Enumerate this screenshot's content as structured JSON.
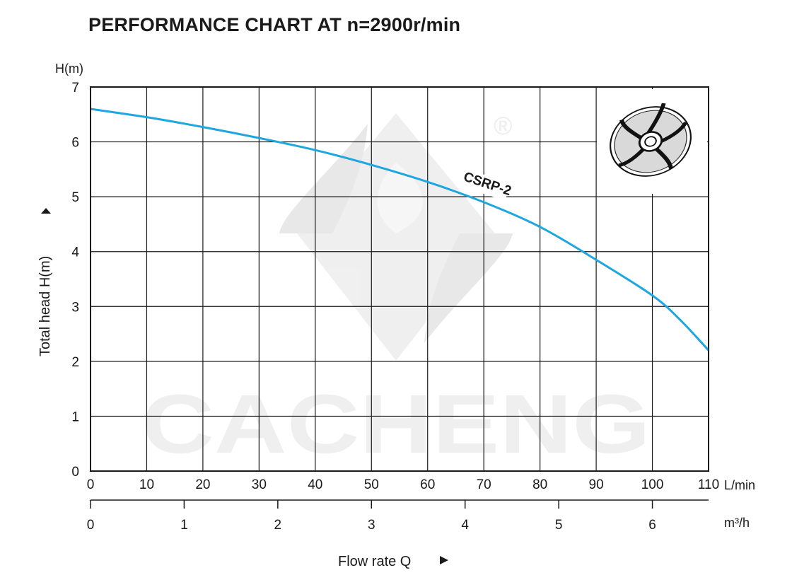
{
  "chart_data": {
    "type": "line",
    "title": "PERFORMANCE CHART AT n=2900r/min",
    "ylabel": "Total  head H(m)",
    "yunit": "H(m)",
    "xlabel": "Flow rate  Q",
    "x_unit_primary": "L/min",
    "x_unit_secondary": "m³/h",
    "ylim": [
      0,
      7
    ],
    "xlim": [
      0,
      110
    ],
    "yticks": [
      0,
      1,
      2,
      3,
      4,
      5,
      6,
      7
    ],
    "xticks_primary": [
      0,
      10,
      20,
      30,
      40,
      50,
      60,
      70,
      80,
      90,
      100,
      110
    ],
    "xticks_secondary": [
      0,
      1,
      2,
      3,
      4,
      5,
      6
    ],
    "xlim_secondary": [
      0,
      6.6
    ],
    "grid": true,
    "series": [
      {
        "name": "CSRP-2",
        "color": "#1ea6e0",
        "x": [
          0,
          10,
          20,
          30,
          40,
          50,
          60,
          70,
          80,
          90,
          100,
          105,
          110
        ],
        "y": [
          6.6,
          6.45,
          6.27,
          6.07,
          5.85,
          5.58,
          5.27,
          4.9,
          4.45,
          3.85,
          3.2,
          2.75,
          2.2
        ]
      }
    ]
  },
  "watermark": {
    "text": "CACHENG",
    "registered": "®"
  },
  "icons": {
    "inset": "impeller-icon",
    "y_arrow": "up-arrow-icon",
    "x_arrow": "right-arrow-icon"
  }
}
